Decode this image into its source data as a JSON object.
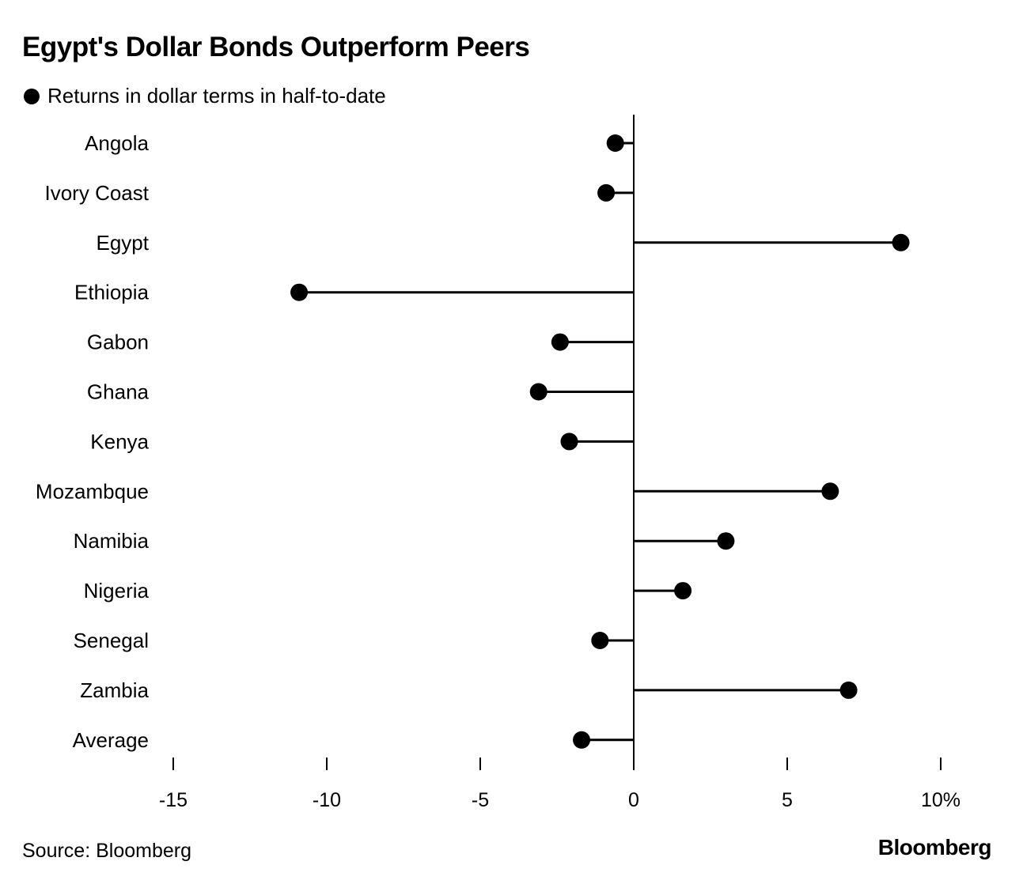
{
  "title": "Egypt's Dollar Bonds Outperform Peers",
  "source": "Source: Bloomberg",
  "brand": "Bloomberg",
  "chart_data": {
    "type": "lollipop",
    "title": "Egypt's Dollar Bonds Outperform Peers",
    "categories": [
      "Angola",
      "Ivory Coast",
      "Egypt",
      "Ethiopia",
      "Gabon",
      "Ghana",
      "Kenya",
      "Mozambque",
      "Namibia",
      "Nigeria",
      "Senegal",
      "Zambia",
      "Average"
    ],
    "series": [
      {
        "name": "Returns in dollar terms in half-to-date",
        "values": [
          -0.6,
          -0.9,
          8.7,
          -10.9,
          -2.4,
          -3.1,
          -2.1,
          6.4,
          3.0,
          1.6,
          -1.1,
          7.0,
          -1.7
        ]
      }
    ],
    "xlim": [
      -15,
      10
    ],
    "xticks": [
      -15,
      -10,
      -5,
      0,
      5,
      10
    ],
    "xtick_labels": [
      "-15",
      "-10",
      "-5",
      "0",
      "5",
      "10%"
    ],
    "legend_position": "top-left",
    "grid": false,
    "colors": {
      "marker": "#000000",
      "stem": "#000000",
      "axis": "#000000"
    }
  }
}
